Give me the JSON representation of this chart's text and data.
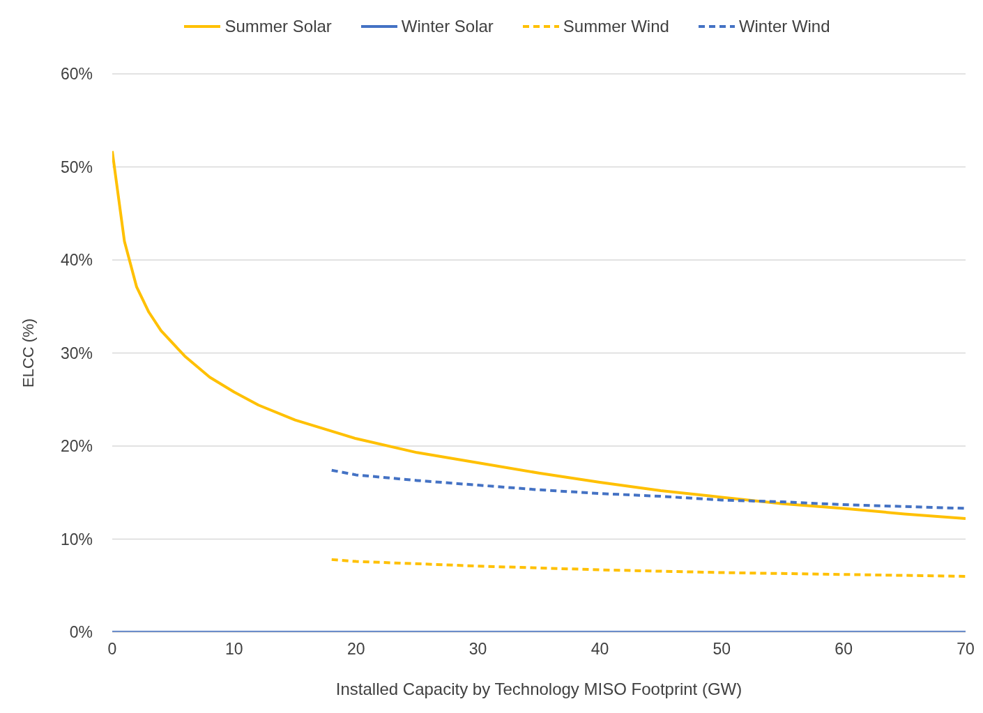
{
  "chart_data": {
    "type": "line",
    "xlabel": "Installed Capacity by Technology MISO Footprint (GW)",
    "ylabel": "ELCC (%)",
    "xlim": [
      0,
      70
    ],
    "xticks": [
      0,
      10,
      20,
      30,
      40,
      50,
      60,
      70
    ],
    "ylim": [
      0,
      60
    ],
    "yticks": [
      {
        "value": 0,
        "label": "0%"
      },
      {
        "value": 10,
        "label": "10%"
      },
      {
        "value": 20,
        "label": "20%"
      },
      {
        "value": 30,
        "label": "30%"
      },
      {
        "value": 40,
        "label": "40%"
      },
      {
        "value": 50,
        "label": "50%"
      },
      {
        "value": 60,
        "label": "60%"
      }
    ],
    "grid": "y",
    "legend": "top",
    "marker": "none",
    "series": [
      {
        "name": "Summer Solar",
        "color": "#ffc000",
        "line_style": "solid",
        "x": [
          0,
          1,
          2,
          3,
          4,
          6,
          8,
          10,
          12,
          15,
          18,
          20,
          25,
          30,
          35,
          40,
          45,
          50,
          55,
          60,
          65,
          70
        ],
        "values": [
          51.7,
          42.0,
          37.1,
          34.4,
          32.4,
          29.6,
          27.4,
          25.8,
          24.4,
          22.8,
          21.6,
          20.8,
          19.3,
          18.2,
          17.1,
          16.1,
          15.2,
          14.5,
          13.8,
          13.3,
          12.7,
          12.2
        ]
      },
      {
        "name": "Winter Solar",
        "color": "#4472c4",
        "line_style": "solid",
        "x": [
          0,
          70
        ],
        "values": [
          0,
          0
        ]
      },
      {
        "name": "Summer Wind",
        "color": "#ffc000",
        "line_style": "dashed",
        "x": [
          18,
          20,
          30,
          40,
          50,
          60,
          70
        ],
        "values": [
          7.8,
          7.6,
          7.1,
          6.7,
          6.4,
          6.2,
          6.0
        ]
      },
      {
        "name": "Winter Wind",
        "color": "#4472c4",
        "line_style": "dashed",
        "x": [
          18,
          20,
          25,
          30,
          35,
          40,
          45,
          50,
          55,
          60,
          65,
          70
        ],
        "values": [
          17.4,
          16.9,
          16.3,
          15.8,
          15.3,
          14.9,
          14.6,
          14.2,
          14.0,
          13.7,
          13.5,
          13.3
        ]
      }
    ]
  }
}
